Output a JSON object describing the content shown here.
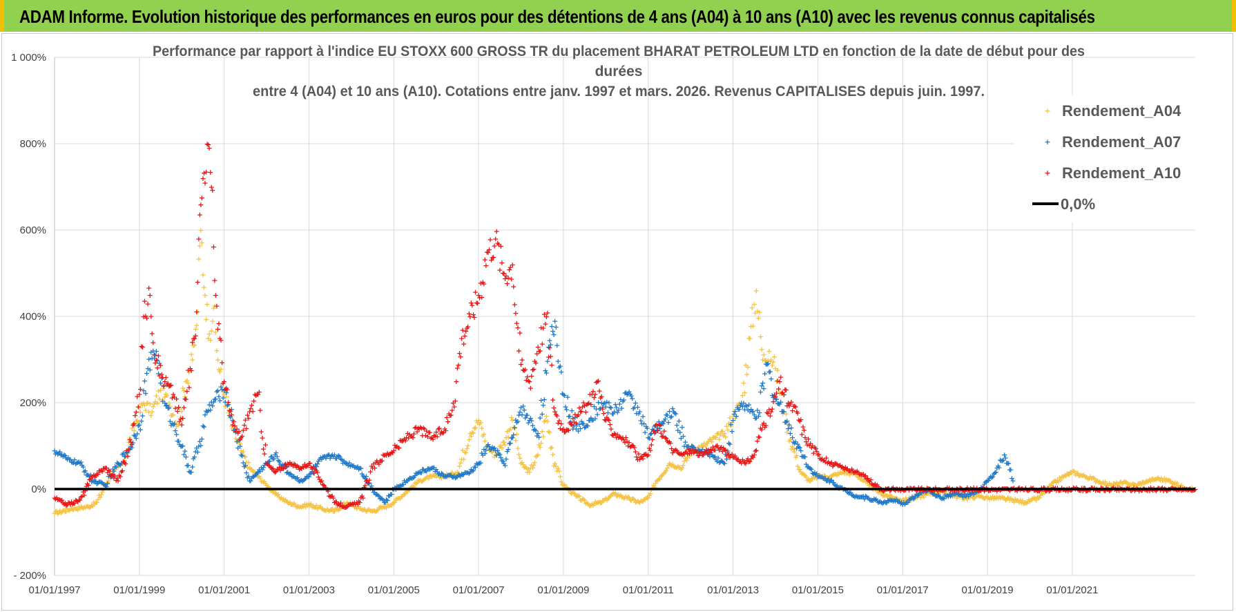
{
  "banner": {
    "title": "ADAM Informe. Evolution historique des performances en euros pour des détentions de 4 ans (A04) à 10 ans (A10) avec les revenus connus capitalisés"
  },
  "chart_data": {
    "type": "scatter",
    "title_lines": [
      "Performance par rapport à l'indice EU STOXX 600 GROSS TR  du placement BHARAT PETROLEUM LTD en fonction de la date de début pour des",
      "durées",
      "entre 4 (A04) et 10 ans (A10). Cotations entre janv. 1997 et mars. 2026. Revenus CAPITALISES depuis juin. 1997."
    ],
    "xlabel": "",
    "ylabel": "",
    "x_range": [
      1997.0,
      2023.9
    ],
    "ylim": [
      -200,
      1000
    ],
    "y_ticks": [
      -200,
      0,
      200,
      400,
      600,
      800,
      1000
    ],
    "y_tick_labels": [
      "- 200%",
      "0%",
      "200%",
      "400%",
      "600%",
      "800%",
      "1 000%"
    ],
    "x_ticks": [
      1997,
      1999,
      2001,
      2003,
      2005,
      2007,
      2009,
      2011,
      2013,
      2015,
      2017,
      2019,
      2021
    ],
    "x_tick_labels": [
      "01/01/1997",
      "01/01/1999",
      "01/01/2001",
      "01/01/2003",
      "01/01/2005",
      "01/01/2007",
      "01/01/2009",
      "01/01/2011",
      "01/01/2013",
      "01/01/2015",
      "01/01/2017",
      "01/01/2019",
      "01/01/2021"
    ],
    "grid": true,
    "legend_position": "right",
    "series": [
      {
        "name": "Rendement_A04",
        "color": "#f5c242",
        "marker": "+",
        "x": [
          1997.0,
          1997.4,
          1997.8,
          1998.0,
          1998.3,
          1998.6,
          1998.9,
          1999.1,
          1999.3,
          1999.5,
          1999.7,
          1999.9,
          2000.1,
          2000.25,
          2000.35,
          2000.45,
          2000.55,
          2000.65,
          2000.75,
          2000.85,
          2001.0,
          2001.2,
          2001.4,
          2001.6,
          2001.8,
          2002.0,
          2002.2,
          2002.5,
          2002.8,
          2003.0,
          2003.3,
          2003.6,
          2003.9,
          2004.2,
          2004.5,
          2004.8,
          2005.0,
          2005.3,
          2005.6,
          2005.9,
          2006.2,
          2006.5,
          2006.8,
          2007.0,
          2007.2,
          2007.4,
          2007.6,
          2007.8,
          2008.0,
          2008.2,
          2008.4,
          2008.6,
          2008.8,
          2009.0,
          2009.3,
          2009.6,
          2009.9,
          2010.2,
          2010.5,
          2010.8,
          2011.0,
          2011.2,
          2011.5,
          2011.8,
          2012.0,
          2012.3,
          2012.6,
          2012.8,
          2013.0,
          2013.2,
          2013.4,
          2013.55,
          2013.7,
          2013.85,
          2014.0,
          2014.2,
          2014.4,
          2014.6,
          2014.8,
          2015.0,
          2015.3,
          2015.6,
          2015.9,
          2016.2,
          2016.5,
          2016.8,
          2017.0,
          2017.3,
          2017.6,
          2017.9,
          2018.2,
          2018.5,
          2018.8,
          2019.0,
          2019.3,
          2019.6,
          2019.9,
          2020.2,
          2020.5,
          2020.8,
          2021.0,
          2021.3,
          2021.6,
          2021.9,
          2022.2,
          2022.5,
          2022.8,
          2023.0,
          2023.3,
          2023.6,
          2023.9
        ],
        "y": [
          -55,
          -45,
          -40,
          -30,
          30,
          60,
          150,
          200,
          180,
          230,
          200,
          150,
          250,
          300,
          380,
          600,
          450,
          360,
          420,
          300,
          220,
          140,
          90,
          50,
          30,
          10,
          -10,
          -30,
          -40,
          -35,
          -45,
          -50,
          -30,
          -45,
          -50,
          -40,
          -30,
          -5,
          20,
          30,
          30,
          40,
          130,
          160,
          100,
          80,
          110,
          160,
          60,
          40,
          80,
          170,
          60,
          10,
          -15,
          -35,
          -30,
          -10,
          -20,
          -30,
          -20,
          20,
          60,
          50,
          90,
          100,
          120,
          130,
          170,
          200,
          350,
          460,
          300,
          320,
          280,
          180,
          100,
          40,
          20,
          30,
          30,
          40,
          35,
          10,
          -10,
          -20,
          -25,
          -20,
          -10,
          -5,
          -15,
          -20,
          -15,
          -20,
          -20,
          -25,
          -30,
          -20,
          10,
          30,
          40,
          30,
          20,
          10,
          15,
          10,
          20,
          25,
          20,
          5,
          0
        ]
      },
      {
        "name": "Rendement_A07",
        "color": "#1f78c8",
        "marker": "+",
        "x": [
          1997.0,
          1997.3,
          1997.6,
          1997.9,
          1998.2,
          1998.5,
          1998.8,
          1999.0,
          1999.2,
          1999.4,
          1999.6,
          1999.8,
          2000.0,
          2000.2,
          2000.4,
          2000.6,
          2000.8,
          2001.0,
          2001.2,
          2001.4,
          2001.6,
          2001.8,
          2002.0,
          2002.2,
          2002.5,
          2002.8,
          2003.0,
          2003.3,
          2003.6,
          2003.9,
          2004.2,
          2004.5,
          2004.8,
          2005.0,
          2005.3,
          2005.6,
          2005.9,
          2006.2,
          2006.5,
          2006.8,
          2007.0,
          2007.2,
          2007.4,
          2007.6,
          2007.8,
          2008.0,
          2008.2,
          2008.4,
          2008.6,
          2008.8,
          2009.0,
          2009.3,
          2009.6,
          2009.9,
          2010.2,
          2010.5,
          2010.8,
          2011.0,
          2011.3,
          2011.6,
          2011.9,
          2012.2,
          2012.5,
          2012.8,
          2013.0,
          2013.2,
          2013.4,
          2013.6,
          2013.8,
          2014.0,
          2014.2,
          2014.4,
          2014.6,
          2014.8,
          2015.0,
          2015.3,
          2015.6,
          2015.9,
          2016.2,
          2016.5,
          2016.8,
          2017.0,
          2017.3,
          2017.6,
          2017.9,
          2018.2,
          2018.5,
          2018.8,
          2019.0,
          2019.2,
          2019.4,
          2019.6
        ],
        "y": [
          90,
          70,
          60,
          20,
          10,
          60,
          100,
          150,
          280,
          320,
          200,
          150,
          100,
          40,
          100,
          180,
          210,
          230,
          160,
          80,
          20,
          40,
          60,
          80,
          40,
          20,
          30,
          70,
          80,
          60,
          50,
          0,
          -30,
          0,
          20,
          40,
          50,
          30,
          30,
          40,
          60,
          100,
          90,
          60,
          120,
          190,
          160,
          130,
          270,
          390,
          220,
          140,
          160,
          200,
          180,
          220,
          180,
          120,
          150,
          180,
          100,
          90,
          80,
          60,
          160,
          200,
          180,
          170,
          290,
          210,
          180,
          120,
          90,
          50,
          30,
          20,
          0,
          -15,
          -20,
          -30,
          -25,
          -35,
          -15,
          0,
          -20,
          -10,
          -15,
          -5,
          20,
          40,
          80,
          20
        ]
      },
      {
        "name": "Rendement_A10",
        "color": "#e81414",
        "marker": "+",
        "x": [
          1997.0,
          1997.3,
          1997.6,
          1997.9,
          1998.2,
          1998.5,
          1998.8,
          1999.0,
          1999.1,
          1999.25,
          1999.4,
          1999.6,
          1999.8,
          2000.0,
          2000.2,
          2000.3,
          2000.4,
          2000.5,
          2000.6,
          2000.7,
          2000.8,
          2000.9,
          2001.0,
          2001.2,
          2001.4,
          2001.6,
          2001.8,
          2002.0,
          2002.2,
          2002.5,
          2002.8,
          2003.0,
          2003.3,
          2003.6,
          2003.9,
          2004.2,
          2004.5,
          2004.8,
          2005.0,
          2005.3,
          2005.6,
          2005.9,
          2006.2,
          2006.4,
          2006.6,
          2006.8,
          2007.0,
          2007.2,
          2007.4,
          2007.6,
          2007.8,
          2008.0,
          2008.2,
          2008.4,
          2008.6,
          2008.8,
          2009.0,
          2009.2,
          2009.4,
          2009.6,
          2009.8,
          2010.0,
          2010.2,
          2010.4,
          2010.6,
          2010.8,
          2011.0,
          2011.2,
          2011.4,
          2011.6,
          2011.8,
          2012.0,
          2012.3,
          2012.6,
          2012.9,
          2013.1,
          2013.3,
          2013.5,
          2013.7,
          2013.9,
          2014.1,
          2014.3,
          2014.5,
          2014.7,
          2015.0,
          2015.3,
          2015.6,
          2015.9,
          2016.1,
          2016.5,
          2017.0,
          2017.5,
          2018.0,
          2018.5,
          2019.0,
          2019.5,
          2020.0,
          2020.5,
          2021.0,
          2021.5,
          2022.0,
          2022.5,
          2023.0,
          2023.5,
          2023.9
        ],
        "y": [
          -20,
          -35,
          -25,
          30,
          50,
          20,
          110,
          220,
          400,
          450,
          300,
          250,
          220,
          150,
          280,
          350,
          580,
          720,
          800,
          700,
          450,
          350,
          250,
          150,
          120,
          180,
          220,
          60,
          40,
          60,
          50,
          60,
          20,
          -30,
          -40,
          -30,
          50,
          80,
          90,
          120,
          140,
          120,
          140,
          200,
          350,
          400,
          450,
          550,
          580,
          500,
          520,
          290,
          250,
          330,
          400,
          180,
          140,
          150,
          180,
          200,
          250,
          160,
          130,
          120,
          100,
          70,
          80,
          150,
          120,
          90,
          80,
          90,
          80,
          100,
          80,
          70,
          60,
          80,
          150,
          180,
          250,
          200,
          180,
          120,
          80,
          60,
          50,
          40,
          30,
          0,
          0,
          0,
          0,
          0,
          0,
          0,
          0,
          0,
          0,
          0,
          0,
          0,
          0,
          0,
          0
        ]
      }
    ],
    "reference_line": {
      "name": "0,0%",
      "value": 0,
      "color": "#000000"
    }
  }
}
